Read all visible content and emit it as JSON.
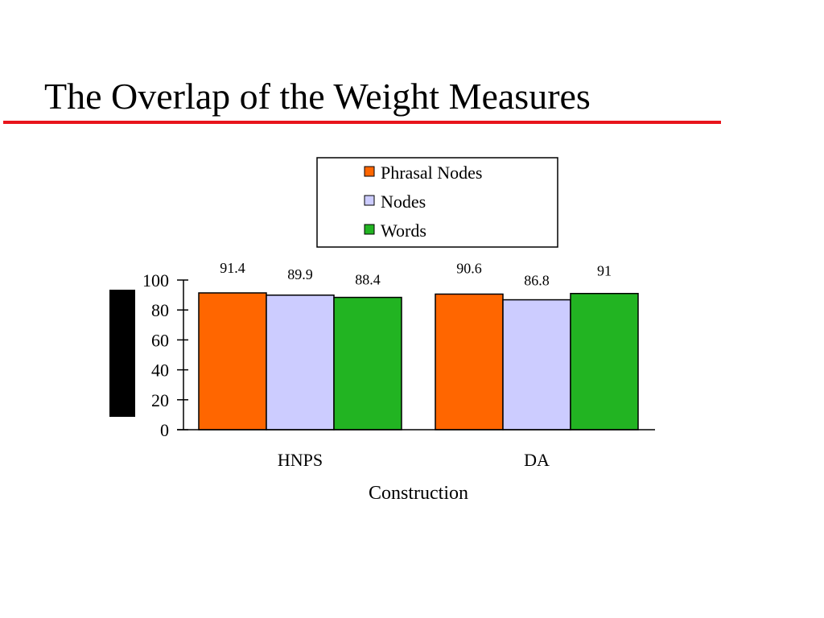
{
  "slide": {
    "title": "The Overlap of the Weight Measures",
    "rule_color": "#e8141c"
  },
  "chart_data": {
    "type": "bar",
    "categories": [
      "HNPS",
      "DA"
    ],
    "series": [
      {
        "name": "Phrasal Nodes",
        "values": [
          91.4,
          90.6
        ],
        "color": "#ff6600"
      },
      {
        "name": "Nodes",
        "values": [
          89.9,
          86.8
        ],
        "color": "#ccccff"
      },
      {
        "name": "Words",
        "values": [
          88.4,
          91
        ],
        "color": "#22b422"
      }
    ],
    "data_labels": [
      [
        "91.4",
        "90.6"
      ],
      [
        "89.9",
        "86.8"
      ],
      [
        "88.4",
        "91"
      ]
    ],
    "xlabel": "Construction",
    "ylabel": "",
    "ylim": [
      0,
      100
    ],
    "yticks": [
      0,
      20,
      40,
      60,
      80,
      100
    ],
    "legend_position": "top-center",
    "grid": false
  }
}
